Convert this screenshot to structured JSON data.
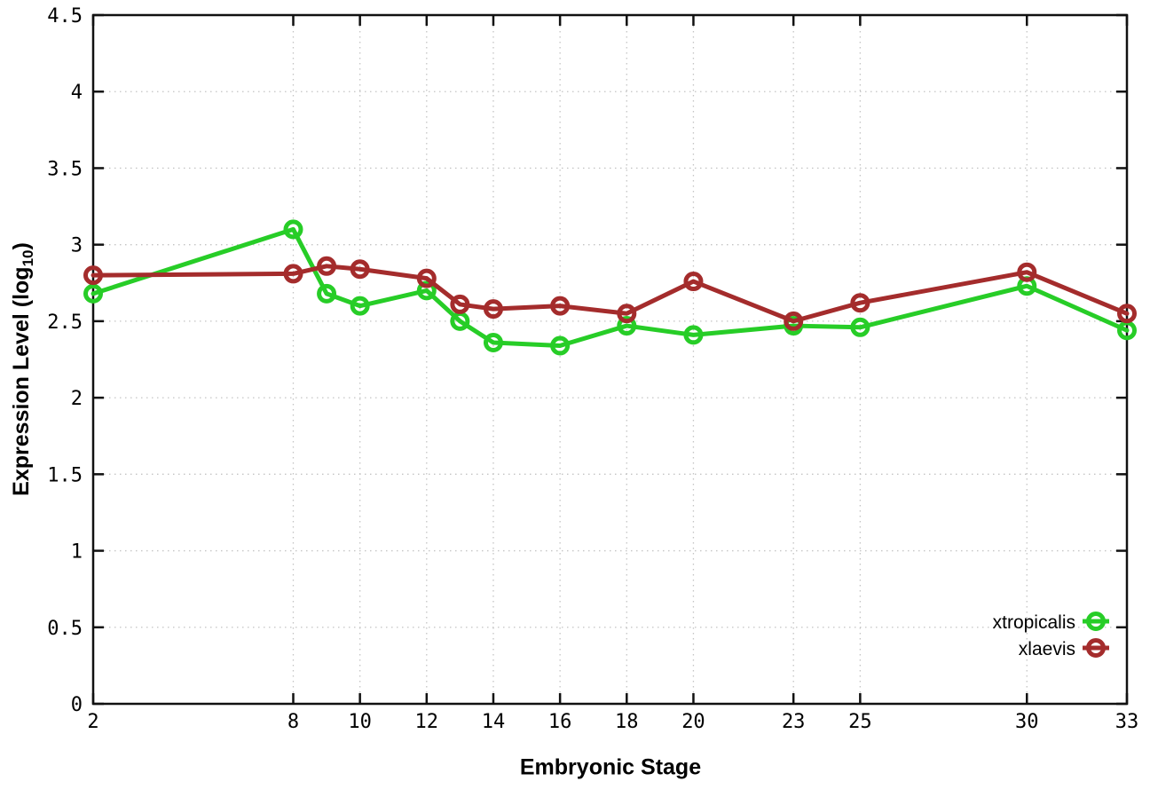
{
  "chart_data": {
    "type": "line",
    "title": "",
    "xlabel": "Embryonic Stage",
    "ylabel": "Expression Level (log10)",
    "ylabel_prefix": "Expression Level (log",
    "ylabel_sub": "10",
    "ylabel_suffix": ")",
    "xlim": [
      2,
      33
    ],
    "ylim": [
      0,
      4.5
    ],
    "grid": true,
    "legend_position": "bottom-right",
    "x_ticks": [
      2,
      8,
      10,
      12,
      14,
      16,
      18,
      20,
      23,
      25,
      30,
      33
    ],
    "x_tick_labels": [
      "2",
      "8",
      "10",
      "12",
      "14",
      "16",
      "18",
      "20",
      "23",
      "25",
      "30",
      "33"
    ],
    "y_ticks": [
      0,
      0.5,
      1,
      1.5,
      2,
      2.5,
      3,
      3.5,
      4,
      4.5
    ],
    "y_tick_labels": [
      "0",
      "0.5",
      "1",
      "1.5",
      "2",
      "2.5",
      "3",
      "3.5",
      "4",
      "4.5"
    ],
    "x": [
      2,
      8,
      9,
      10,
      12,
      13,
      14,
      16,
      18,
      20,
      23,
      25,
      30,
      33
    ],
    "series": [
      {
        "name": "xtropicalis",
        "color": "#27cd27",
        "values": [
          2.68,
          3.1,
          2.68,
          2.6,
          2.7,
          2.5,
          2.36,
          2.34,
          2.47,
          2.41,
          2.47,
          2.46,
          2.73,
          2.44
        ]
      },
      {
        "name": "xlaevis",
        "color": "#a42c2c",
        "values": [
          2.8,
          2.81,
          2.86,
          2.84,
          2.78,
          2.61,
          2.58,
          2.6,
          2.55,
          2.76,
          2.5,
          2.62,
          2.82,
          2.55
        ]
      }
    ],
    "colors": {
      "axis": "#111111",
      "grid": "#c4c4c4",
      "text": "#000000",
      "background": "#ffffff"
    }
  }
}
